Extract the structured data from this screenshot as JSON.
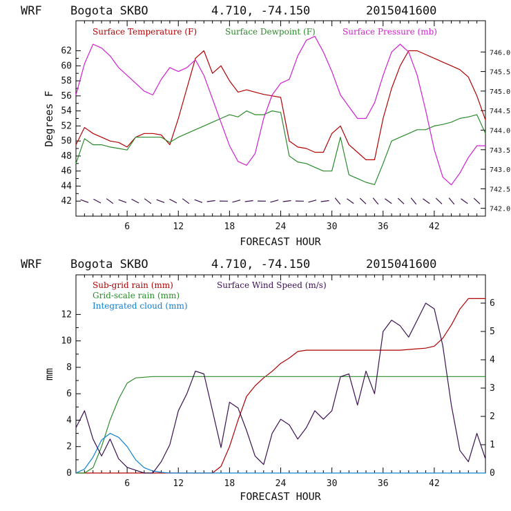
{
  "chart_data": [
    {
      "type": "line",
      "header": {
        "model": "WRF",
        "site": "Bogota SKBO",
        "coords": "4.710, -74.150",
        "run": "2015041600"
      },
      "title": "WRF   Bogota SKBO    4.710, -74.150  2015041600",
      "xlabel": "FORECAST HOUR",
      "ylabel": "Degrees F",
      "xlim": [
        0,
        48
      ],
      "ylim": [
        40,
        66
      ],
      "y2lim": [
        741.8,
        746.8
      ],
      "xticks": [
        6,
        12,
        18,
        24,
        30,
        36,
        42
      ],
      "yticks": [
        42,
        44,
        46,
        48,
        50,
        52,
        54,
        56,
        58,
        60,
        62
      ],
      "y2ticks": [
        742.0,
        742.5,
        743.0,
        743.5,
        744.0,
        744.5,
        745.0,
        745.5,
        746.0
      ],
      "y2tick_labels": [
        "742.0",
        "742.5",
        "743.0",
        "743.5",
        "744.0",
        "744.5",
        "745.0",
        "745.5",
        "746.0"
      ],
      "legend": [
        "Surface Temperature (F)",
        "Surface Dewpoint (F)",
        "Surface Pressure (mb)"
      ],
      "x": [
        0,
        1,
        2,
        3,
        4,
        5,
        6,
        7,
        8,
        9,
        10,
        11,
        12,
        13,
        14,
        15,
        16,
        17,
        18,
        19,
        20,
        21,
        22,
        23,
        24,
        25,
        26,
        27,
        28,
        29,
        30,
        31,
        32,
        33,
        34,
        35,
        36,
        37,
        38,
        39,
        40,
        41,
        42,
        43,
        44,
        45,
        46,
        47,
        48
      ],
      "series": [
        {
          "name": "Surface Temperature (F)",
          "color": "#b00000",
          "axis": "left",
          "values": [
            49.5,
            51.8,
            51,
            50.5,
            50,
            49.8,
            49.2,
            50.5,
            51,
            51,
            50.8,
            49.5,
            53,
            57,
            61,
            62,
            59,
            60,
            58,
            56.5,
            56.8,
            56.5,
            56.2,
            56,
            55.8,
            50,
            49.2,
            49,
            48.5,
            48.5,
            51,
            52,
            49.5,
            48.5,
            47.5,
            47.5,
            53,
            57,
            60,
            62,
            62,
            61.5,
            61,
            60.5,
            60,
            59.5,
            58.5,
            56,
            52.8
          ]
        },
        {
          "name": "Surface Dewpoint (F)",
          "color": "#2a8a2a",
          "axis": "left",
          "values": [
            47,
            50.3,
            49.5,
            49.5,
            49.2,
            49,
            48.8,
            50.5,
            50.5,
            50.5,
            50.5,
            49.8,
            50.5,
            51,
            51.5,
            52,
            52.5,
            53,
            53.5,
            53.2,
            54,
            53.5,
            53.5,
            54,
            53.8,
            48,
            47.2,
            47,
            46.5,
            46,
            46,
            50.5,
            45.5,
            45,
            44.5,
            44.2,
            47,
            50,
            50.5,
            51,
            51.5,
            51.5,
            52,
            52.2,
            52.5,
            53,
            53.2,
            53.5,
            51
          ]
        },
        {
          "name": "Surface Pressure (mb)",
          "color": "#d020d0",
          "axis": "right",
          "values": [
            744.9,
            745.7,
            746.2,
            746.1,
            745.9,
            745.6,
            745.4,
            745.2,
            745.0,
            744.9,
            745.3,
            745.6,
            745.5,
            745.6,
            745.8,
            745.4,
            744.8,
            744.2,
            743.6,
            743.2,
            743.1,
            743.4,
            744.3,
            744.9,
            745.2,
            745.3,
            745.9,
            746.3,
            746.4,
            746.0,
            745.5,
            744.9,
            744.6,
            744.3,
            744.3,
            744.7,
            745.4,
            746.0,
            746.2,
            746.0,
            745.4,
            744.5,
            743.5,
            742.8,
            742.6,
            742.9,
            743.3,
            743.6,
            743.6
          ]
        }
      ],
      "wind_barbs": {
        "label": "wind barbs along 42 F",
        "count": 32
      }
    },
    {
      "type": "line",
      "header": {
        "model": "WRF",
        "site": "Bogota SKBO",
        "coords": "4.710, -74.150",
        "run": "2015041600"
      },
      "title": "WRF   Bogota SKBO    4.710, -74.150  2015041600",
      "xlabel": "FORECAST HOUR",
      "ylabel": "mm",
      "xlim": [
        0,
        48
      ],
      "ylim": [
        0,
        15
      ],
      "y2lim": [
        0,
        7
      ],
      "xticks": [
        6,
        12,
        18,
        24,
        30,
        36,
        42
      ],
      "yticks": [
        0,
        2,
        4,
        6,
        8,
        10,
        12
      ],
      "y2ticks": [
        0,
        1,
        2,
        3,
        4,
        5,
        6
      ],
      "legend": [
        "Sub-grid rain (mm)",
        "Grid-scale rain (mm)",
        "Integrated cloud (mm)",
        "Surface Wind Speed (m/s)"
      ],
      "x": [
        0,
        1,
        2,
        3,
        4,
        5,
        6,
        7,
        8,
        9,
        10,
        11,
        12,
        13,
        14,
        15,
        16,
        17,
        18,
        19,
        20,
        21,
        22,
        23,
        24,
        25,
        26,
        27,
        28,
        29,
        30,
        31,
        32,
        33,
        34,
        35,
        36,
        37,
        38,
        39,
        40,
        41,
        42,
        43,
        44,
        45,
        46,
        47,
        48
      ],
      "series": [
        {
          "name": "Sub-grid rain (mm)",
          "color": "#b00000",
          "axis": "left",
          "values": [
            0,
            0,
            0,
            0,
            0,
            0,
            0,
            0,
            0,
            0,
            0,
            0,
            0,
            0,
            0,
            0,
            0,
            0.5,
            2,
            4,
            5.8,
            6.6,
            7.2,
            7.7,
            8.3,
            8.7,
            9.2,
            9.3,
            9.3,
            9.3,
            9.3,
            9.3,
            9.3,
            9.3,
            9.3,
            9.3,
            9.3,
            9.3,
            9.3,
            9.35,
            9.4,
            9.45,
            9.6,
            10.2,
            11.2,
            12.4,
            13.2,
            13.2,
            13.2
          ]
        },
        {
          "name": "Grid-scale rain (mm)",
          "color": "#2a8a2a",
          "axis": "left",
          "values": [
            0,
            0,
            0.4,
            2,
            4,
            5.6,
            6.8,
            7.2,
            7.25,
            7.3,
            7.3,
            7.3,
            7.3,
            7.3,
            7.3,
            7.3,
            7.3,
            7.3,
            7.3,
            7.3,
            7.3,
            7.3,
            7.3,
            7.3,
            7.3,
            7.3,
            7.3,
            7.3,
            7.3,
            7.3,
            7.3,
            7.3,
            7.3,
            7.3,
            7.3,
            7.3,
            7.3,
            7.3,
            7.3,
            7.3,
            7.3,
            7.3,
            7.3,
            7.3,
            7.3,
            7.3,
            7.3,
            7.3,
            7.3
          ]
        },
        {
          "name": "Integrated cloud (mm)",
          "color": "#1080d0",
          "axis": "left",
          "values": [
            0,
            0.3,
            1.2,
            2.5,
            3,
            2.7,
            2,
            1,
            0.4,
            0.15,
            0.05,
            0,
            0,
            0,
            0,
            0,
            0,
            0,
            0,
            0,
            0,
            0,
            0,
            0,
            0,
            0,
            0,
            0,
            0,
            0,
            0,
            0,
            0,
            0,
            0,
            0,
            0,
            0,
            0,
            0,
            0,
            0,
            0,
            0,
            0,
            0,
            0,
            0,
            0
          ]
        },
        {
          "name": "Surface Wind Speed (m/s)",
          "color": "#3a1050",
          "axis": "right",
          "values": [
            1.6,
            2.2,
            1.2,
            0.6,
            1.2,
            0.5,
            0.2,
            0.1,
            0,
            0,
            0.4,
            1,
            2.2,
            2.8,
            3.6,
            3.5,
            2.2,
            0.9,
            2.5,
            2.3,
            1.5,
            0.6,
            0.3,
            1.4,
            1.9,
            1.7,
            1.2,
            1.6,
            2.2,
            1.9,
            2.2,
            3.4,
            3.5,
            2.4,
            3.6,
            2.8,
            5,
            5.4,
            5.2,
            4.8,
            5.4,
            6,
            5.8,
            4.5,
            2.4,
            0.8,
            0.4,
            1.4,
            0.5
          ]
        }
      ]
    }
  ]
}
